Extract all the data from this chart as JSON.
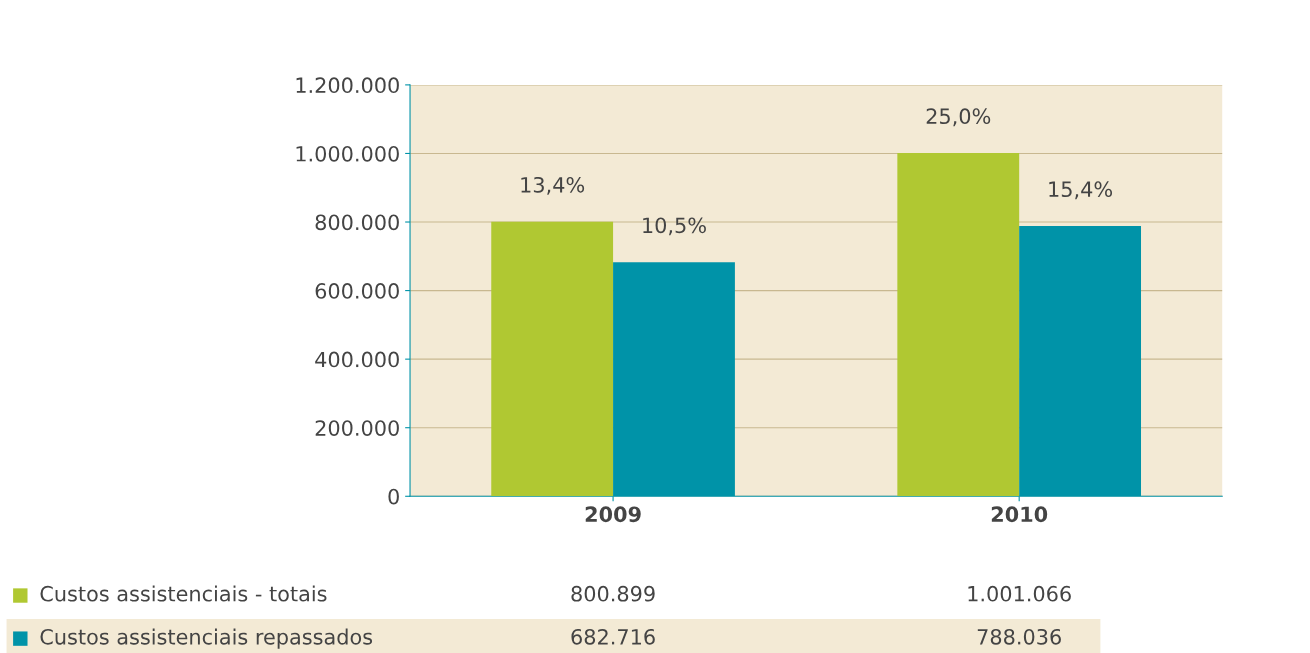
{
  "chart_data": {
    "type": "bar",
    "categories": [
      "2009",
      "2010"
    ],
    "series": [
      {
        "name": "Custos assistenciais - totais",
        "color": "#b0c832",
        "values": [
          800899,
          1001066
        ],
        "value_labels": [
          "800.899",
          "1.001.066"
        ]
      },
      {
        "name": "Custos assistenciais repassados",
        "color": "#0093a8",
        "values": [
          682716,
          788036
        ],
        "value_labels": [
          "682.716",
          "788.036"
        ]
      }
    ],
    "ylim": [
      0,
      1200000
    ],
    "yticks": [
      {
        "value": 0,
        "label": "0"
      },
      {
        "value": 200000,
        "label": "200.000"
      },
      {
        "value": 400000,
        "label": "400.000"
      },
      {
        "value": 600000,
        "label": "600.000"
      },
      {
        "value": 800000,
        "label": "800.000"
      },
      {
        "value": 1000000,
        "label": "1.000.000"
      },
      {
        "value": 1200000,
        "label": "1.200.000"
      }
    ],
    "grid": "y",
    "legend": "bottom",
    "annotations": [
      {
        "text": "13,4%",
        "x": "2009",
        "y": 800899
      },
      {
        "text": "10,5%",
        "x": "2009",
        "y": 682716
      },
      {
        "text": "25,0%",
        "x": "2010",
        "y": 1001066
      },
      {
        "text": "15,4%",
        "x": "2010",
        "y": 788036
      }
    ]
  }
}
